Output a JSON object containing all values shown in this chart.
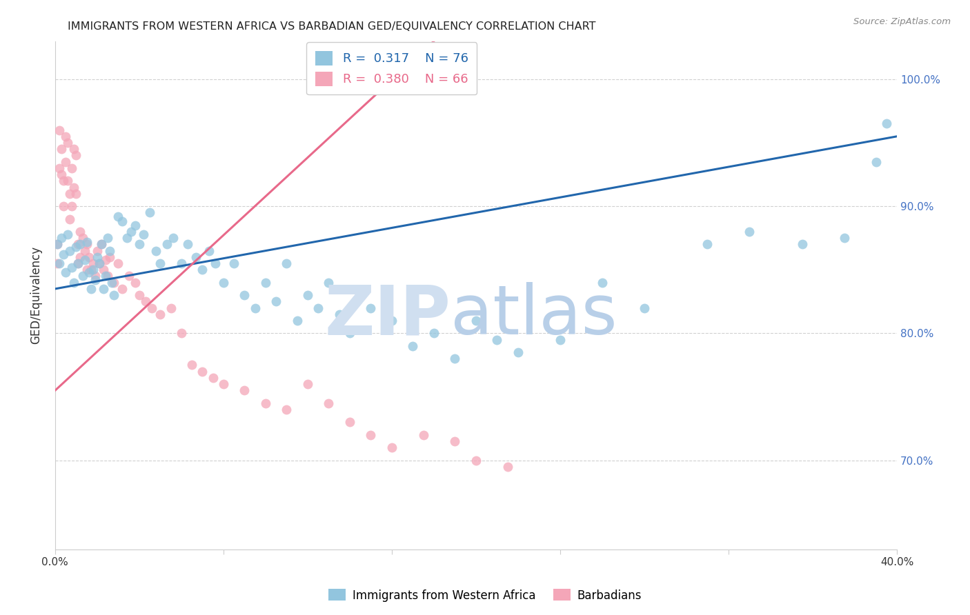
{
  "title": "IMMIGRANTS FROM WESTERN AFRICA VS BARBADIAN GED/EQUIVALENCY CORRELATION CHART",
  "source": "Source: ZipAtlas.com",
  "ylabel": "GED/Equivalency",
  "x_min": 0.0,
  "x_max": 0.4,
  "y_min": 0.63,
  "y_max": 1.03,
  "x_ticks": [
    0.0,
    0.08,
    0.16,
    0.24,
    0.32,
    0.4
  ],
  "x_tick_labels": [
    "0.0%",
    "",
    "",
    "",
    "",
    "40.0%"
  ],
  "y_ticks": [
    0.7,
    0.8,
    0.9,
    1.0
  ],
  "y_tick_labels": [
    "70.0%",
    "80.0%",
    "90.0%",
    "100.0%"
  ],
  "legend_r_blue": "0.317",
  "legend_n_blue": "76",
  "legend_r_pink": "0.380",
  "legend_n_pink": "66",
  "blue_color": "#92c5de",
  "pink_color": "#f4a6b8",
  "blue_line_color": "#2166ac",
  "pink_line_color": "#e8698a",
  "watermark_zip_color": "#d0dff0",
  "watermark_atlas_color": "#b8cfe8",
  "blue_scatter_x": [
    0.001,
    0.002,
    0.003,
    0.004,
    0.005,
    0.006,
    0.007,
    0.008,
    0.009,
    0.01,
    0.011,
    0.012,
    0.013,
    0.014,
    0.015,
    0.016,
    0.017,
    0.018,
    0.019,
    0.02,
    0.021,
    0.022,
    0.023,
    0.024,
    0.025,
    0.026,
    0.027,
    0.028,
    0.03,
    0.032,
    0.034,
    0.036,
    0.038,
    0.04,
    0.042,
    0.045,
    0.048,
    0.05,
    0.053,
    0.056,
    0.06,
    0.063,
    0.067,
    0.07,
    0.073,
    0.076,
    0.08,
    0.085,
    0.09,
    0.095,
    0.1,
    0.105,
    0.11,
    0.115,
    0.12,
    0.125,
    0.13,
    0.135,
    0.14,
    0.15,
    0.16,
    0.17,
    0.18,
    0.19,
    0.2,
    0.21,
    0.22,
    0.24,
    0.26,
    0.28,
    0.31,
    0.33,
    0.355,
    0.375,
    0.39,
    0.395
  ],
  "blue_scatter_y": [
    0.87,
    0.855,
    0.875,
    0.862,
    0.848,
    0.878,
    0.865,
    0.852,
    0.84,
    0.868,
    0.855,
    0.87,
    0.845,
    0.858,
    0.872,
    0.848,
    0.835,
    0.85,
    0.842,
    0.86,
    0.855,
    0.87,
    0.835,
    0.845,
    0.875,
    0.865,
    0.84,
    0.83,
    0.892,
    0.888,
    0.875,
    0.88,
    0.885,
    0.87,
    0.878,
    0.895,
    0.865,
    0.855,
    0.87,
    0.875,
    0.855,
    0.87,
    0.86,
    0.85,
    0.865,
    0.855,
    0.84,
    0.855,
    0.83,
    0.82,
    0.84,
    0.825,
    0.855,
    0.81,
    0.83,
    0.82,
    0.84,
    0.815,
    0.8,
    0.82,
    0.81,
    0.79,
    0.8,
    0.78,
    0.81,
    0.795,
    0.785,
    0.795,
    0.84,
    0.82,
    0.87,
    0.88,
    0.87,
    0.875,
    0.935,
    0.965
  ],
  "pink_scatter_x": [
    0.001,
    0.001,
    0.002,
    0.002,
    0.003,
    0.003,
    0.004,
    0.004,
    0.005,
    0.005,
    0.006,
    0.006,
    0.007,
    0.007,
    0.008,
    0.008,
    0.009,
    0.009,
    0.01,
    0.01,
    0.011,
    0.011,
    0.012,
    0.012,
    0.013,
    0.014,
    0.015,
    0.015,
    0.016,
    0.017,
    0.018,
    0.019,
    0.02,
    0.021,
    0.022,
    0.023,
    0.024,
    0.025,
    0.026,
    0.028,
    0.03,
    0.032,
    0.035,
    0.038,
    0.04,
    0.043,
    0.046,
    0.05,
    0.055,
    0.06,
    0.065,
    0.07,
    0.075,
    0.08,
    0.09,
    0.1,
    0.11,
    0.12,
    0.13,
    0.14,
    0.15,
    0.16,
    0.175,
    0.19,
    0.2,
    0.215
  ],
  "pink_scatter_y": [
    0.87,
    0.855,
    0.96,
    0.93,
    0.945,
    0.925,
    0.92,
    0.9,
    0.955,
    0.935,
    0.95,
    0.92,
    0.91,
    0.89,
    0.93,
    0.9,
    0.945,
    0.915,
    0.94,
    0.91,
    0.87,
    0.855,
    0.88,
    0.86,
    0.875,
    0.865,
    0.87,
    0.85,
    0.86,
    0.85,
    0.855,
    0.845,
    0.865,
    0.855,
    0.87,
    0.85,
    0.858,
    0.845,
    0.86,
    0.84,
    0.855,
    0.835,
    0.845,
    0.84,
    0.83,
    0.825,
    0.82,
    0.815,
    0.82,
    0.8,
    0.775,
    0.77,
    0.765,
    0.76,
    0.755,
    0.745,
    0.74,
    0.76,
    0.745,
    0.73,
    0.72,
    0.71,
    0.72,
    0.715,
    0.7,
    0.695
  ],
  "blue_trend_x0": 0.0,
  "blue_trend_x1": 0.4,
  "blue_trend_y0": 0.835,
  "blue_trend_y1": 0.955,
  "pink_trend_x0": 0.0,
  "pink_trend_x1": 0.18,
  "pink_trend_y0": 0.755,
  "pink_trend_y1": 1.03
}
